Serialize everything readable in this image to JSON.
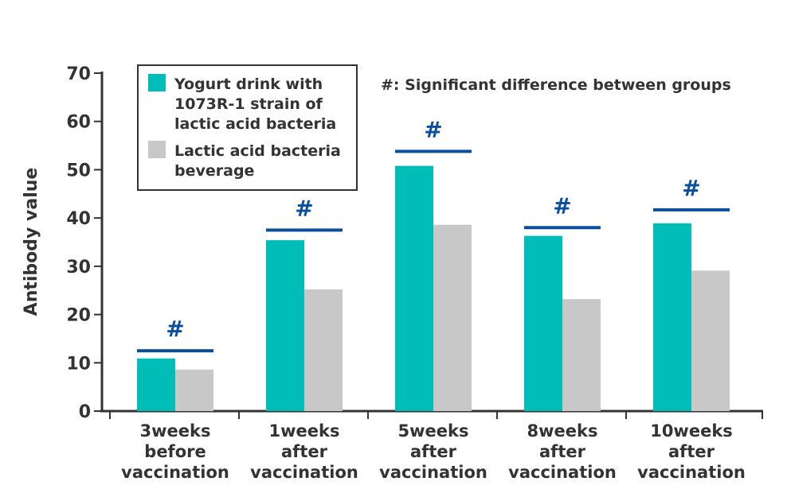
{
  "chart_data": {
    "type": "bar",
    "ylabel": "Antibody value",
    "ylim": [
      0,
      70
    ],
    "yticks": [
      "0",
      "10",
      "20",
      "30",
      "40",
      "50",
      "60",
      "70"
    ],
    "categories": [
      [
        "3weeks",
        "before",
        "vaccination"
      ],
      [
        "1weeks",
        "after",
        "vaccination"
      ],
      [
        "5weeks",
        "after",
        "vaccination"
      ],
      [
        "8weeks",
        "after",
        "vaccination"
      ],
      [
        "10weeks",
        "after",
        "vaccination"
      ]
    ],
    "series": [
      {
        "name": [
          "Yogurt drink with",
          "1073R-1 strain of",
          "lactic acid bacteria"
        ],
        "color": "#00bdb8",
        "values": [
          10.9,
          35.4,
          50.8,
          36.3,
          38.9
        ]
      },
      {
        "name": [
          "Lactic acid bacteria",
          "beverage"
        ],
        "color": "#c8c8c8",
        "values": [
          8.6,
          25.2,
          38.6,
          23.2,
          29.1
        ]
      }
    ],
    "significance": {
      "symbol": "#",
      "note": "#: Significant difference between groups",
      "bar_color": "#0a4f9e",
      "levels": [
        12.5,
        37.5,
        53.8,
        38.0,
        41.7
      ]
    },
    "grid": false,
    "legend_position": "top-left"
  }
}
